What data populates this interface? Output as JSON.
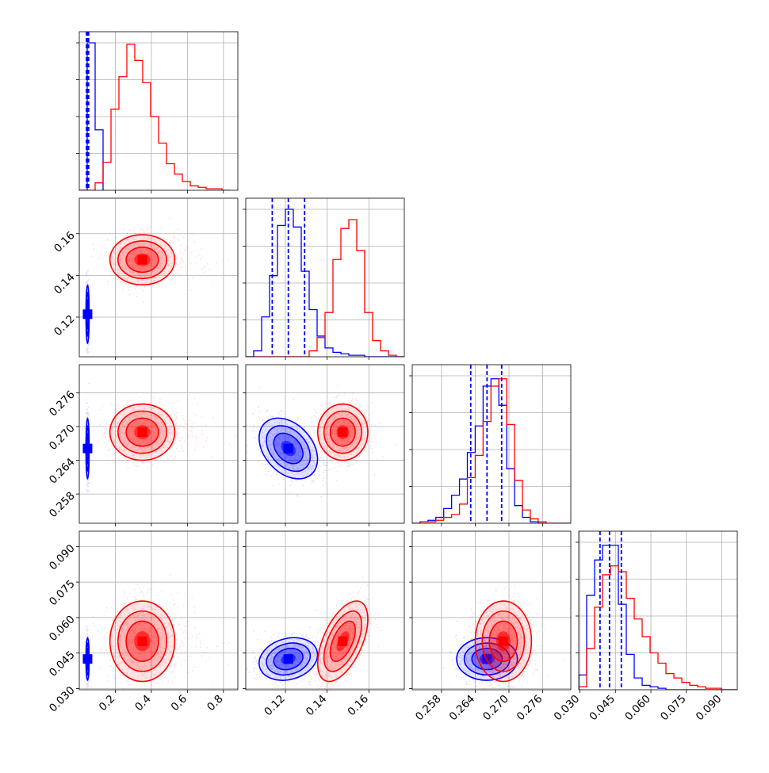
{
  "colors": {
    "series_a": "#0000ff",
    "series_b": "#ff0000",
    "grid": "#b0b0b0",
    "frame": "#000000"
  },
  "chart_data": {
    "type": "corner",
    "grid": true,
    "parameters": [
      {
        "range": [
          0.0,
          0.88
        ],
        "ticks": [
          0.2,
          0.4,
          0.6,
          0.8
        ],
        "tick_labels": [
          "0.2",
          "0.4",
          "0.6",
          "0.8"
        ]
      },
      {
        "range": [
          0.101,
          0.177
        ],
        "ticks": [
          0.12,
          0.14,
          0.16
        ],
        "tick_labels": [
          "0.12",
          "0.14",
          "0.16"
        ]
      },
      {
        "range": [
          0.2528,
          0.281
        ],
        "ticks": [
          0.258,
          0.264,
          0.27,
          0.276
        ],
        "tick_labels": [
          "0.258",
          "0.264",
          "0.270",
          "0.276"
        ]
      },
      {
        "range": [
          0.0295,
          0.0965
        ],
        "ticks": [
          0.03,
          0.045,
          0.06,
          0.075,
          0.09
        ],
        "tick_labels": [
          "0.030",
          "0.045",
          "0.060",
          "0.075",
          "0.090"
        ]
      }
    ],
    "series": [
      {
        "color": "#0000ff",
        "quantiles": [
          [
            0.04,
            0.046,
            0.052
          ],
          [
            0.1137,
            0.1214,
            0.1292
          ],
          [
            0.2632,
            0.2661,
            0.2687
          ],
          [
            0.0385,
            0.0425,
            0.0475
          ]
        ],
        "means": [
          0.046,
          0.1214,
          0.2661,
          0.0425
        ],
        "stds": [
          0.004,
          0.007,
          0.0027,
          0.0045
        ],
        "corr": [
          [
            1,
            0,
            0,
            0
          ],
          [
            0,
            1,
            -0.35,
            0.2
          ],
          [
            0,
            -0.35,
            1,
            0
          ],
          [
            0,
            0.2,
            0,
            1
          ]
        ],
        "histograms": [
          {
            "edges": [
              0.0,
              0.044,
              0.088,
              0.132
            ],
            "counts": [
              0.0,
              1.0,
              0.41
            ]
          },
          {
            "edges": [
              0.101,
              0.1048,
              0.1086,
              0.1124,
              0.1162,
              0.12,
              0.1238,
              0.1276,
              0.1314,
              0.1352,
              0.139,
              0.1428,
              0.1466,
              0.1504,
              0.1542,
              0.158,
              0.1618,
              0.1656,
              0.1694,
              0.1732,
              0.177
            ],
            "counts": [
              0.0,
              0.04,
              0.27,
              0.55,
              0.89,
              1.0,
              0.88,
              0.58,
              0.32,
              0.14,
              0.06,
              0.03,
              0.02,
              0.01,
              0.01,
              0.0,
              0.0,
              0.0,
              0.0,
              0.0
            ]
          },
          {
            "edges": [
              0.2528,
              0.2542,
              0.2556,
              0.257,
              0.2584,
              0.2598,
              0.2612,
              0.2626,
              0.264,
              0.2654,
              0.2668,
              0.2682,
              0.2696,
              0.271,
              0.2724,
              0.2738,
              0.2752,
              0.2766,
              0.278,
              0.2794,
              0.281
            ],
            "counts": [
              0.0,
              0.01,
              0.02,
              0.04,
              0.1,
              0.19,
              0.3,
              0.48,
              0.66,
              0.93,
              0.98,
              0.8,
              0.37,
              0.12,
              0.04,
              0.01,
              0.0,
              0.0,
              0.0,
              0.0
            ]
          },
          {
            "edges": [
              0.0295,
              0.03285,
              0.0362,
              0.03955,
              0.0429,
              0.04625,
              0.0496,
              0.05295,
              0.0563,
              0.05965,
              0.063,
              0.06635,
              0.0697,
              0.07305,
              0.0764,
              0.07975,
              0.0831,
              0.08645,
              0.0898,
              0.09315,
              0.0965
            ],
            "counts": [
              0.1,
              0.64,
              0.88,
              0.98,
              0.98,
              0.58,
              0.24,
              0.08,
              0.03,
              0.02,
              0.01,
              0.0,
              0.0,
              0.0,
              0.0,
              0.0,
              0.0,
              0.0,
              0.0,
              0.0
            ]
          }
        ]
      },
      {
        "color": "#ff0000",
        "means": [
          0.35,
          0.1475,
          0.269,
          0.05
        ],
        "stds": [
          0.09,
          0.006,
          0.0025,
          0.0085
        ],
        "corr": [
          [
            1,
            0,
            0,
            0
          ],
          [
            0,
            1,
            0,
            0.55
          ],
          [
            0,
            0,
            1,
            0
          ],
          [
            0,
            0.55,
            0,
            1
          ]
        ],
        "histograms": [
          {
            "edges": [
              0.0,
              0.044,
              0.088,
              0.132,
              0.176,
              0.22,
              0.264,
              0.308,
              0.352,
              0.396,
              0.44,
              0.484,
              0.528,
              0.572,
              0.616,
              0.66,
              0.704,
              0.748,
              0.792,
              0.836
            ],
            "counts": [
              0.0,
              0.0,
              0.05,
              0.19,
              0.55,
              0.77,
              0.99,
              0.88,
              0.73,
              0.5,
              0.32,
              0.18,
              0.11,
              0.06,
              0.03,
              0.02,
              0.01,
              0.01,
              0.0
            ]
          },
          {
            "edges": [
              0.101,
              0.1048,
              0.1086,
              0.1124,
              0.1162,
              0.12,
              0.1238,
              0.1276,
              0.1314,
              0.1352,
              0.139,
              0.1428,
              0.1466,
              0.1504,
              0.1542,
              0.158,
              0.1618,
              0.1656,
              0.1694,
              0.1732,
              0.177
            ],
            "counts": [
              0.0,
              0.0,
              0.0,
              0.0,
              0.0,
              0.0,
              0.0,
              0.0,
              0.04,
              0.13,
              0.3,
              0.66,
              0.87,
              0.93,
              0.72,
              0.3,
              0.11,
              0.04,
              0.01,
              0.0
            ]
          },
          {
            "edges": [
              0.2528,
              0.2542,
              0.2556,
              0.257,
              0.2584,
              0.2598,
              0.2612,
              0.2626,
              0.264,
              0.2654,
              0.2668,
              0.2682,
              0.2696,
              0.271,
              0.2724,
              0.2738,
              0.2752,
              0.2766,
              0.278,
              0.2794,
              0.281
            ],
            "counts": [
              0.0,
              0.01,
              0.01,
              0.02,
              0.04,
              0.06,
              0.13,
              0.31,
              0.46,
              0.69,
              0.93,
              0.98,
              0.67,
              0.29,
              0.09,
              0.03,
              0.01,
              0.0,
              0.0,
              0.0
            ]
          },
          {
            "edges": [
              0.0295,
              0.03285,
              0.0362,
              0.03955,
              0.0429,
              0.04625,
              0.0496,
              0.05295,
              0.0563,
              0.05965,
              0.063,
              0.06635,
              0.0697,
              0.07305,
              0.0764,
              0.07975,
              0.0831,
              0.08645,
              0.0898,
              0.09315,
              0.0965
            ],
            "counts": [
              0.02,
              0.28,
              0.56,
              0.78,
              0.84,
              0.8,
              0.62,
              0.48,
              0.36,
              0.25,
              0.18,
              0.11,
              0.08,
              0.05,
              0.03,
              0.02,
              0.01,
              0.01,
              0.0,
              0.0
            ]
          }
        ]
      }
    ]
  }
}
